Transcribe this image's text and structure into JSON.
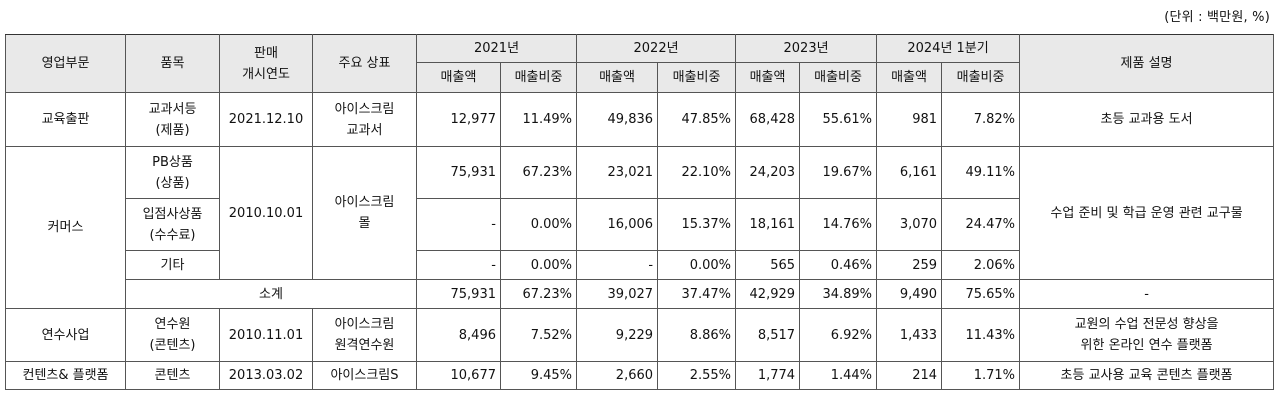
{
  "unit_label": "(단위 : 백만원, %)",
  "headers": {
    "segment": "영업부문",
    "item": "품목",
    "launch_1": "판매",
    "launch_2": "개시연도",
    "brand": "주요 상표",
    "y2021": "2021년",
    "y2022": "2022년",
    "y2023": "2023년",
    "y2024": "2024년 1분기",
    "sales": "매출액",
    "ratio": "매출비중",
    "desc": "제품 설명"
  },
  "rows": {
    "edu": {
      "segment": "교육출판",
      "item_1": "교과서등",
      "item_2": "(제품)",
      "launch": "2021.12.10",
      "brand_1": "아이스크림",
      "brand_2": "교과서",
      "s2021": "12,977",
      "r2021": "11.49%",
      "s2022": "49,836",
      "r2022": "47.85%",
      "s2023": "68,428",
      "r2023": "55.61%",
      "s2024": "981",
      "r2024": "7.82%",
      "desc": "초등 교과용 도서"
    },
    "commerce": {
      "segment": "커머스",
      "launch": "2010.10.01",
      "brand_1": "아이스크림",
      "brand_2": "몰",
      "desc": "수업 준비 및 학급 운영 관련 교구물",
      "pb": {
        "item_1": "PB상품",
        "item_2": "(상품)",
        "s2021": "75,931",
        "r2021": "67.23%",
        "s2022": "23,021",
        "r2022": "22.10%",
        "s2023": "24,203",
        "r2023": "19.67%",
        "s2024": "6,161",
        "r2024": "49.11%"
      },
      "tenant": {
        "item_1": "입점사상품",
        "item_2": "(수수료)",
        "s2021": "-",
        "r2021": "0.00%",
        "s2022": "16,006",
        "r2022": "15.37%",
        "s2023": "18,161",
        "r2023": "14.76%",
        "s2024": "3,070",
        "r2024": "24.47%"
      },
      "other": {
        "item": "기타",
        "s2021": "-",
        "r2021": "0.00%",
        "s2022": "-",
        "r2022": "0.00%",
        "s2023": "565",
        "r2023": "0.46%",
        "s2024": "259",
        "r2024": "2.06%"
      },
      "subtotal": {
        "label": "소계",
        "s2021": "75,931",
        "r2021": "67.23%",
        "s2022": "39,027",
        "r2022": "37.47%",
        "s2023": "42,929",
        "r2023": "34.89%",
        "s2024": "9,490",
        "r2024": "75.65%",
        "desc": "-"
      }
    },
    "training": {
      "segment": "연수사업",
      "item_1": "연수원",
      "item_2": "(콘텐츠)",
      "launch": "2010.11.01",
      "brand_1": "아이스크림",
      "brand_2": "원격연수원",
      "s2021": "8,496",
      "r2021": "7.52%",
      "s2022": "9,229",
      "r2022": "8.86%",
      "s2023": "8,517",
      "r2023": "6.92%",
      "s2024": "1,433",
      "r2024": "11.43%",
      "desc_1": "교원의 수업 전문성 향상을",
      "desc_2": "위한 온라인 연수 플랫폼"
    },
    "contents": {
      "segment": "컨텐츠& 플랫폼",
      "item": "콘텐츠",
      "launch": "2013.03.02",
      "brand": "아이스크림S",
      "s2021": "10,677",
      "r2021": "9.45%",
      "s2022": "2,660",
      "r2022": "2.55%",
      "s2023": "1,774",
      "r2023": "1.44%",
      "s2024": "214",
      "r2024": "1.71%",
      "desc": "초등 교사용 교육 콘텐츠 플랫폼"
    }
  }
}
